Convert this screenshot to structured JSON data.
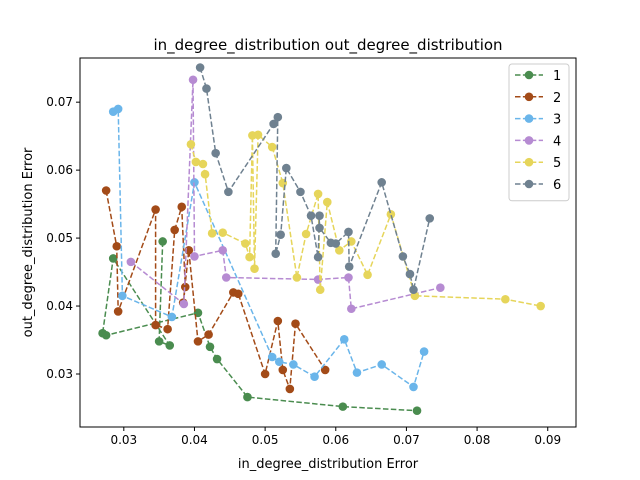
{
  "chart_data": {
    "type": "line",
    "title": "in_degree_distribution out_degree_distribution",
    "xlabel": "in_degree_distribution Error",
    "ylabel": "out_degree_distribution Error",
    "xlim": [
      0.0238,
      0.094
    ],
    "ylim": [
      0.0222,
      0.0765
    ],
    "xticks": [
      0.03,
      0.04,
      0.05,
      0.06,
      0.07,
      0.08,
      0.09
    ],
    "xtick_labels": [
      "0.03",
      "0.04",
      "0.05",
      "0.06",
      "0.07",
      "0.08",
      "0.09"
    ],
    "yticks": [
      0.03,
      0.04,
      0.05,
      0.06,
      0.07
    ],
    "ytick_labels": [
      "0.03",
      "0.04",
      "0.05",
      "0.06",
      "0.07"
    ],
    "grid": false,
    "legend_position": "top-right",
    "series": [
      {
        "name": "1",
        "color": "#4a8c4f",
        "points": [
          [
            0.0355,
            0.0495
          ],
          [
            0.035,
            0.0348
          ],
          [
            0.0365,
            0.0342
          ],
          [
            0.0285,
            0.047
          ],
          [
            0.027,
            0.036
          ],
          [
            0.0275,
            0.0357
          ],
          [
            0.0405,
            0.039
          ],
          [
            0.0422,
            0.034
          ],
          [
            0.0432,
            0.0322
          ],
          [
            0.0475,
            0.0266
          ],
          [
            0.061,
            0.0252
          ],
          [
            0.0715,
            0.0246
          ]
        ]
      },
      {
        "name": "2",
        "color": "#a34b18",
        "points": [
          [
            0.0275,
            0.057
          ],
          [
            0.029,
            0.0488
          ],
          [
            0.0292,
            0.0392
          ],
          [
            0.0345,
            0.0542
          ],
          [
            0.0345,
            0.0372
          ],
          [
            0.0362,
            0.0366
          ],
          [
            0.0372,
            0.0512
          ],
          [
            0.0382,
            0.0546
          ],
          [
            0.0387,
            0.0428
          ],
          [
            0.0384,
            0.0405
          ],
          [
            0.0392,
            0.0482
          ],
          [
            0.0405,
            0.0348
          ],
          [
            0.042,
            0.0358
          ],
          [
            0.0455,
            0.042
          ],
          [
            0.0462,
            0.0418
          ],
          [
            0.05,
            0.03
          ],
          [
            0.0518,
            0.0378
          ],
          [
            0.0525,
            0.0306
          ],
          [
            0.0535,
            0.0278
          ],
          [
            0.0543,
            0.0374
          ],
          [
            0.0585,
            0.0306
          ]
        ]
      },
      {
        "name": "3",
        "color": "#6ab5ea",
        "points": [
          [
            0.0285,
            0.0686
          ],
          [
            0.0292,
            0.069
          ],
          [
            0.0298,
            0.0415
          ],
          [
            0.0368,
            0.0384
          ],
          [
            0.04,
            0.0582
          ],
          [
            0.051,
            0.0325
          ],
          [
            0.052,
            0.0318
          ],
          [
            0.054,
            0.0314
          ],
          [
            0.057,
            0.0296
          ],
          [
            0.0612,
            0.0351
          ],
          [
            0.063,
            0.0302
          ],
          [
            0.0665,
            0.0314
          ],
          [
            0.071,
            0.0281
          ],
          [
            0.0725,
            0.0333
          ]
        ]
      },
      {
        "name": "4",
        "color": "#b68bd2",
        "points": [
          [
            0.031,
            0.0465
          ],
          [
            0.0385,
            0.0403
          ],
          [
            0.0398,
            0.0733
          ],
          [
            0.04,
            0.0473
          ],
          [
            0.044,
            0.0482
          ],
          [
            0.0445,
            0.0442
          ],
          [
            0.0575,
            0.0439
          ],
          [
            0.0618,
            0.0442
          ],
          [
            0.0622,
            0.0396
          ],
          [
            0.0748,
            0.0427
          ]
        ]
      },
      {
        "name": "5",
        "color": "#e6d55a",
        "points": [
          [
            0.0395,
            0.0638
          ],
          [
            0.0402,
            0.0612
          ],
          [
            0.0412,
            0.0609
          ],
          [
            0.0415,
            0.0594
          ],
          [
            0.0425,
            0.0507
          ],
          [
            0.044,
            0.0508
          ],
          [
            0.0472,
            0.0492
          ],
          [
            0.0478,
            0.0472
          ],
          [
            0.0482,
            0.0651
          ],
          [
            0.0485,
            0.0455
          ],
          [
            0.049,
            0.0652
          ],
          [
            0.051,
            0.0634
          ],
          [
            0.0525,
            0.0581
          ],
          [
            0.0545,
            0.0442
          ],
          [
            0.0558,
            0.0506
          ],
          [
            0.0575,
            0.0565
          ],
          [
            0.0578,
            0.0424
          ],
          [
            0.0588,
            0.0553
          ],
          [
            0.0605,
            0.0482
          ],
          [
            0.0622,
            0.0495
          ],
          [
            0.0645,
            0.0446
          ],
          [
            0.0678,
            0.0535
          ],
          [
            0.0712,
            0.0415
          ],
          [
            0.084,
            0.041
          ],
          [
            0.089,
            0.04
          ]
        ]
      },
      {
        "name": "6",
        "color": "#6f8190",
        "points": [
          [
            0.0408,
            0.0751
          ],
          [
            0.0417,
            0.072
          ],
          [
            0.043,
            0.0625
          ],
          [
            0.0448,
            0.0568
          ],
          [
            0.0512,
            0.0668
          ],
          [
            0.0518,
            0.0678
          ],
          [
            0.0515,
            0.0477
          ],
          [
            0.0522,
            0.0505
          ],
          [
            0.053,
            0.0603
          ],
          [
            0.055,
            0.0568
          ],
          [
            0.0565,
            0.0533
          ],
          [
            0.0575,
            0.0472
          ],
          [
            0.0577,
            0.0533
          ],
          [
            0.0577,
            0.0515
          ],
          [
            0.0593,
            0.0493
          ],
          [
            0.06,
            0.0492
          ],
          [
            0.0618,
            0.0509
          ],
          [
            0.0619,
            0.0458
          ],
          [
            0.0665,
            0.0582
          ],
          [
            0.0695,
            0.0473
          ],
          [
            0.0705,
            0.0447
          ],
          [
            0.071,
            0.0424
          ],
          [
            0.0733,
            0.0529
          ]
        ]
      }
    ]
  }
}
